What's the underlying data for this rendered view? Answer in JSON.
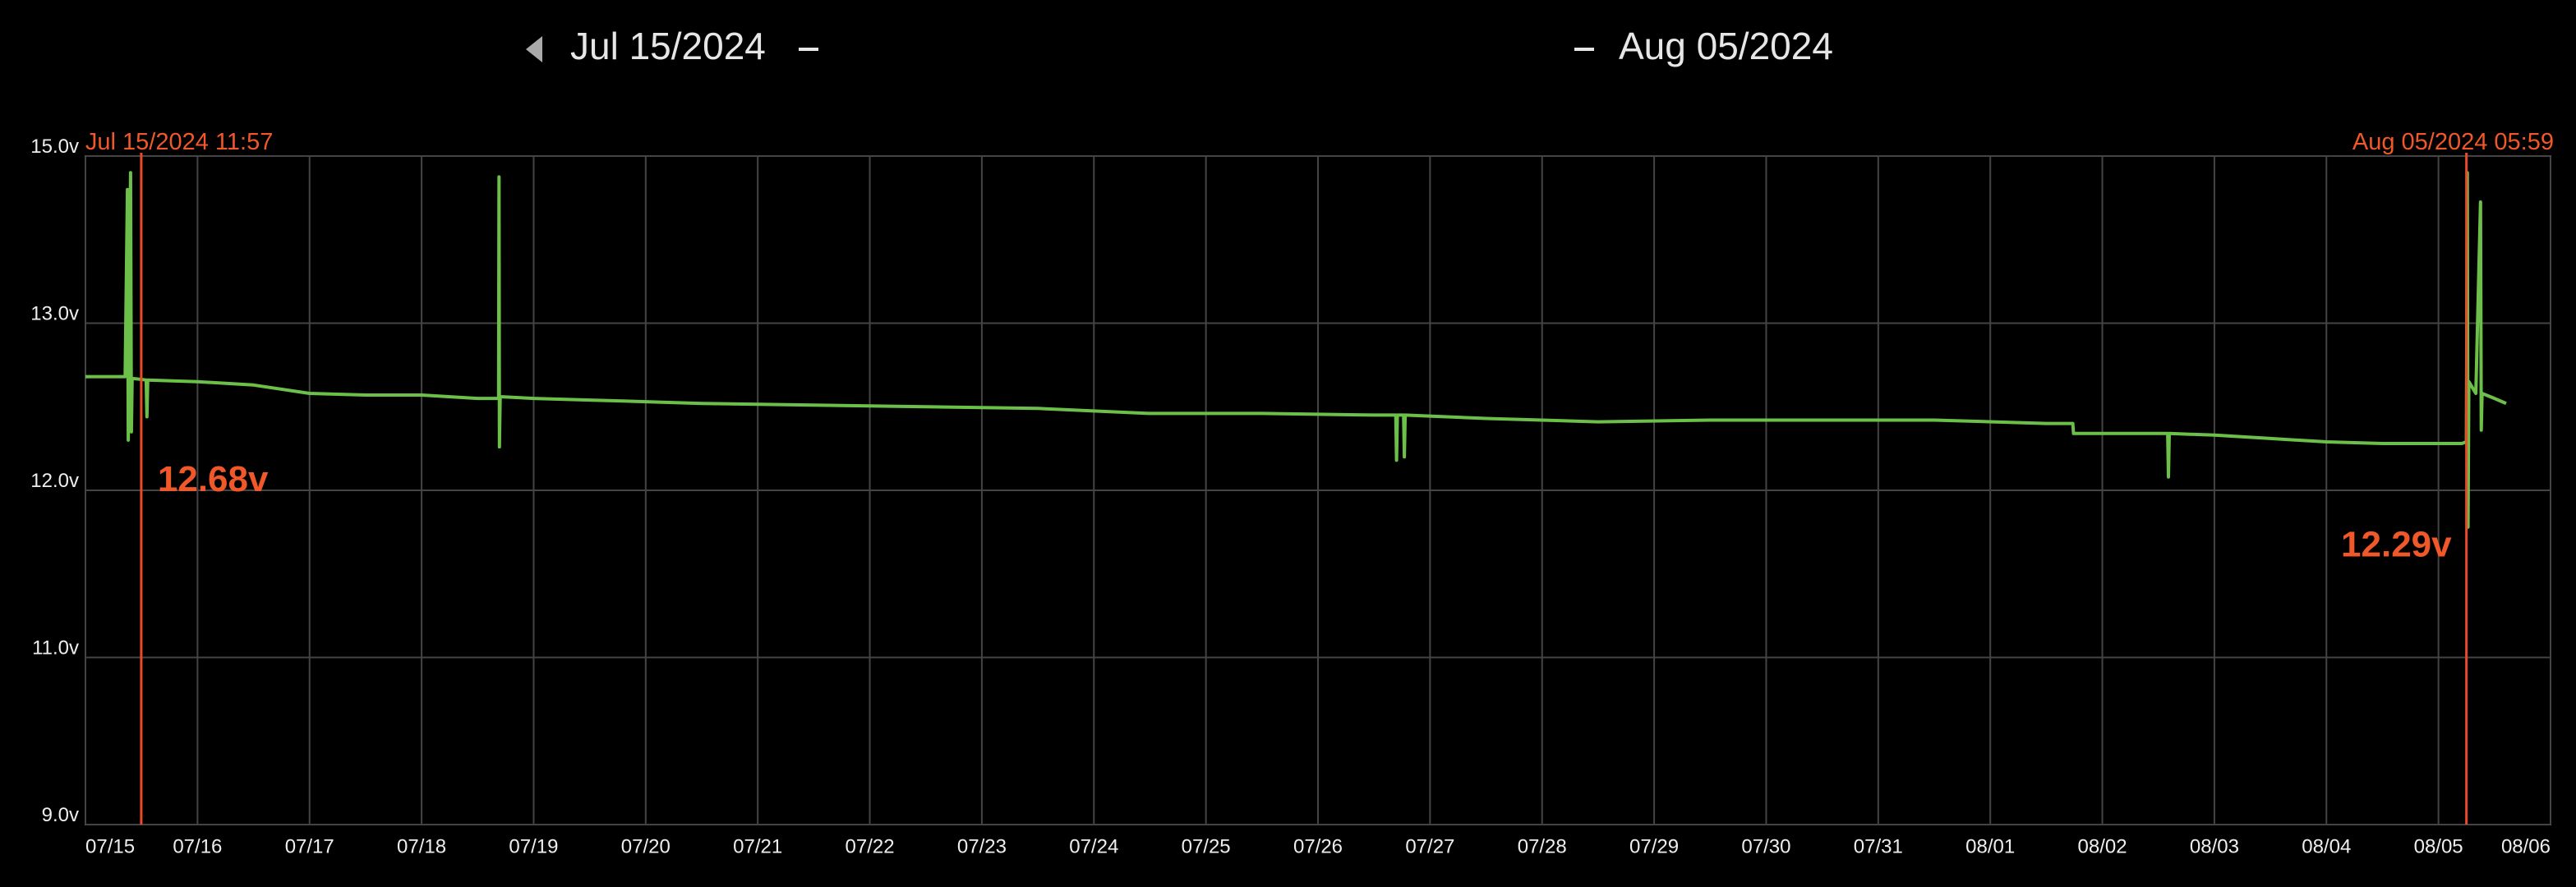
{
  "header": {
    "start": "Jul 15/2024",
    "end": "Aug 05/2024"
  },
  "chart_data": {
    "type": "line",
    "color": "#6cc04a",
    "grid": true,
    "x": [
      "2024-07-15 00:00",
      "2024-07-15 08:30",
      "2024-07-15 09:00",
      "2024-07-15 09:10",
      "2024-07-15 09:40",
      "2024-07-15 09:50",
      "2024-07-15 10:00",
      "2024-07-15 13:00",
      "2024-07-15 13:10",
      "2024-07-15 13:20",
      "2024-07-16 00:00",
      "2024-07-16 12:00",
      "2024-07-17 00:00",
      "2024-07-17 12:00",
      "2024-07-18 00:00",
      "2024-07-18 12:00",
      "2024-07-18 16:30",
      "2024-07-18 16:35",
      "2024-07-18 16:40",
      "2024-07-18 16:50",
      "2024-07-19 00:00",
      "2024-07-19 12:00",
      "2024-07-20 00:00",
      "2024-07-20 12:00",
      "2024-07-21 12:00",
      "2024-07-22 12:00",
      "2024-07-23 12:00",
      "2024-07-24 12:00",
      "2024-07-25 12:00",
      "2024-07-26 12:00",
      "2024-07-26 16:40",
      "2024-07-26 16:50",
      "2024-07-26 17:00",
      "2024-07-26 18:20",
      "2024-07-26 18:30",
      "2024-07-26 18:40",
      "2024-07-27 12:00",
      "2024-07-28 12:00",
      "2024-07-29 12:00",
      "2024-07-30 12:00",
      "2024-07-31 12:00",
      "2024-08-01 12:00",
      "2024-08-01 17:40",
      "2024-08-01 17:50",
      "2024-08-02 14:00",
      "2024-08-02 14:10",
      "2024-08-02 14:20",
      "2024-08-03 00:00",
      "2024-08-03 12:00",
      "2024-08-04 00:00",
      "2024-08-04 12:00",
      "2024-08-05 05:00",
      "2024-08-05 05:59",
      "2024-08-05 06:10",
      "2024-08-05 06:20",
      "2024-08-05 06:30",
      "2024-08-05 08:00",
      "2024-08-05 09:00",
      "2024-08-05 09:10",
      "2024-08-05 09:20",
      "2024-08-05 12:00",
      "2024-08-05 14:30"
    ],
    "values": [
      12.68,
      12.68,
      14.6,
      12.3,
      14.8,
      12.35,
      12.67,
      12.66,
      12.44,
      12.66,
      12.65,
      12.63,
      12.58,
      12.57,
      12.57,
      12.55,
      12.55,
      14.75,
      12.26,
      12.56,
      12.55,
      12.54,
      12.53,
      12.52,
      12.51,
      12.5,
      12.49,
      12.46,
      12.46,
      12.45,
      12.45,
      12.18,
      12.45,
      12.45,
      12.2,
      12.45,
      12.43,
      12.41,
      12.42,
      12.42,
      12.42,
      12.4,
      12.4,
      12.34,
      12.34,
      12.08,
      12.34,
      12.33,
      12.31,
      12.29,
      12.28,
      12.28,
      12.29,
      14.8,
      11.78,
      12.65,
      12.58,
      14.45,
      12.36,
      12.58,
      12.55,
      12.52
    ],
    "xlim": [
      "2024-07-15",
      "2024-08-06"
    ],
    "xticks": [
      {
        "value": "2024-07-15",
        "label": "07/15"
      },
      {
        "value": "2024-07-16",
        "label": "07/16"
      },
      {
        "value": "2024-07-17",
        "label": "07/17"
      },
      {
        "value": "2024-07-18",
        "label": "07/18"
      },
      {
        "value": "2024-07-19",
        "label": "07/19"
      },
      {
        "value": "2024-07-20",
        "label": "07/20"
      },
      {
        "value": "2024-07-21",
        "label": "07/21"
      },
      {
        "value": "2024-07-22",
        "label": "07/22"
      },
      {
        "value": "2024-07-23",
        "label": "07/23"
      },
      {
        "value": "2024-07-24",
        "label": "07/24"
      },
      {
        "value": "2024-07-25",
        "label": "07/25"
      },
      {
        "value": "2024-07-26",
        "label": "07/26"
      },
      {
        "value": "2024-07-27",
        "label": "07/27"
      },
      {
        "value": "2024-07-28",
        "label": "07/28"
      },
      {
        "value": "2024-07-29",
        "label": "07/29"
      },
      {
        "value": "2024-07-30",
        "label": "07/30"
      },
      {
        "value": "2024-07-31",
        "label": "07/31"
      },
      {
        "value": "2024-08-01",
        "label": "08/01"
      },
      {
        "value": "2024-08-02",
        "label": "08/02"
      },
      {
        "value": "2024-08-03",
        "label": "08/03"
      },
      {
        "value": "2024-08-04",
        "label": "08/04"
      },
      {
        "value": "2024-08-05",
        "label": "08/05"
      },
      {
        "value": "2024-08-06",
        "label": "08/06"
      }
    ],
    "ylim": [
      9,
      15
    ],
    "yticks": [
      {
        "value": 9,
        "label": "9.0v"
      },
      {
        "value": 11,
        "label": "11.0v"
      },
      {
        "value": 12,
        "label": "12.0v"
      },
      {
        "value": 13,
        "label": "13.0v"
      },
      {
        "value": 15,
        "label": "15.0v"
      }
    ],
    "cursors": [
      {
        "x": "2024-07-15 11:57",
        "label": "Jul 15/2024 11:57",
        "value": 12.68,
        "value_label": "12.68v"
      },
      {
        "x": "2024-08-05 05:59",
        "label": "Aug 05/2024 05:59",
        "value": 12.29,
        "value_label": "12.29v"
      }
    ]
  }
}
